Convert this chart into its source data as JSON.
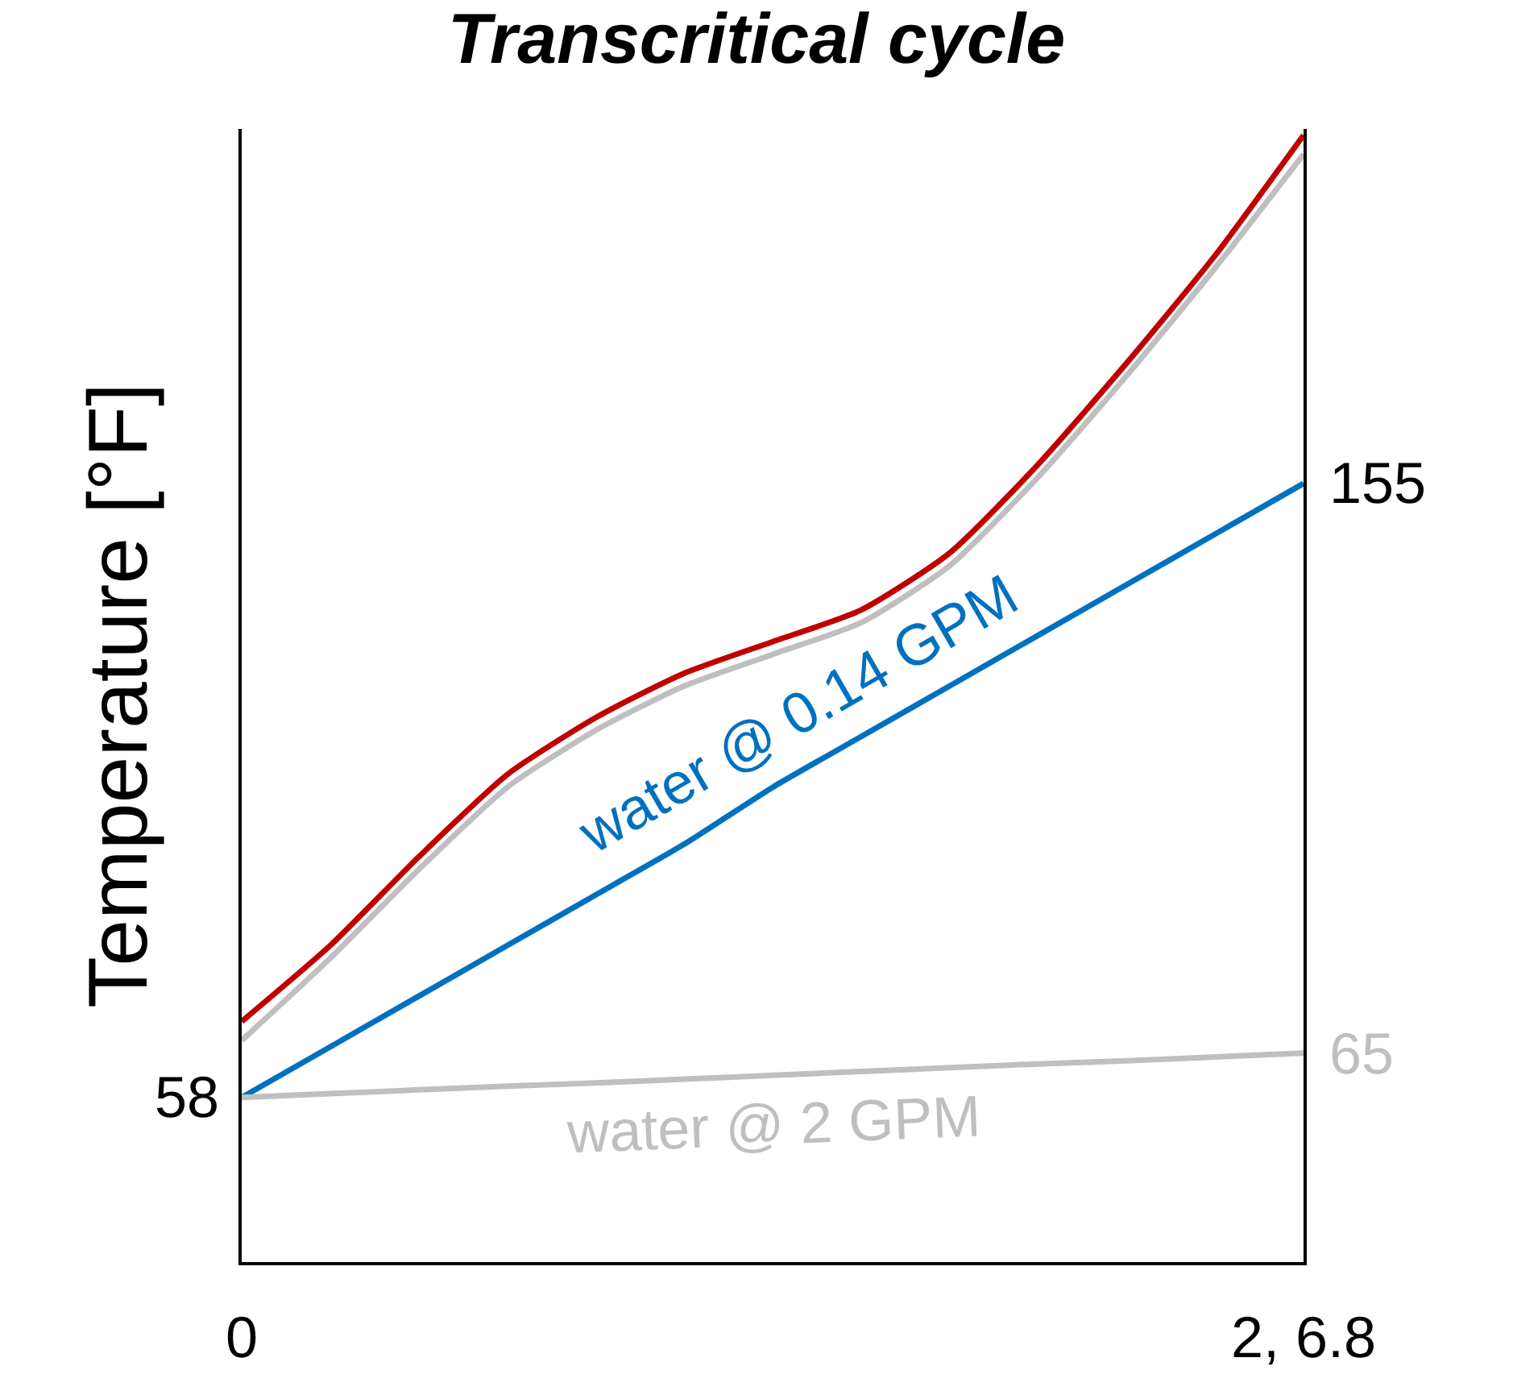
{
  "chart_data": {
    "type": "line",
    "title": "Transcritical cycle",
    "ylabel": "Temperature [°F]",
    "categories": [
      "0",
      null,
      null,
      null,
      null,
      null,
      null,
      null,
      null,
      null,
      null,
      null,
      "2, 6.8"
    ],
    "ylim": [
      32,
      211
    ],
    "series": [
      {
        "name": "water @ 0.14 GPM",
        "color": "#0070c0",
        "values": [
          58,
          66,
          74,
          82,
          90,
          98,
          107,
          115,
          123,
          131,
          139,
          147,
          155
        ],
        "value_labels": [
          "58",
          null,
          null,
          null,
          null,
          null,
          null,
          null,
          null,
          null,
          null,
          null,
          "155"
        ]
      },
      {
        "name": "water @ 2 GPM",
        "color": "#bfbfbf",
        "values": [
          58,
          58.6,
          59.2,
          59.8,
          60.3,
          60.9,
          61.5,
          62.1,
          62.7,
          63.3,
          63.8,
          64.4,
          65
        ],
        "value_labels": [
          null,
          null,
          null,
          null,
          null,
          null,
          null,
          null,
          null,
          null,
          null,
          null,
          "65"
        ]
      },
      {
        "color": "#bfbfbf",
        "values": [
          67,
          80,
          94,
          107,
          116,
          123,
          128,
          133,
          142,
          156,
          172,
          189,
          207
        ]
      },
      {
        "color": "#c00000",
        "values": [
          70,
          82,
          96,
          109,
          118,
          125,
          130,
          135,
          144,
          158,
          174,
          191,
          210
        ]
      }
    ]
  }
}
